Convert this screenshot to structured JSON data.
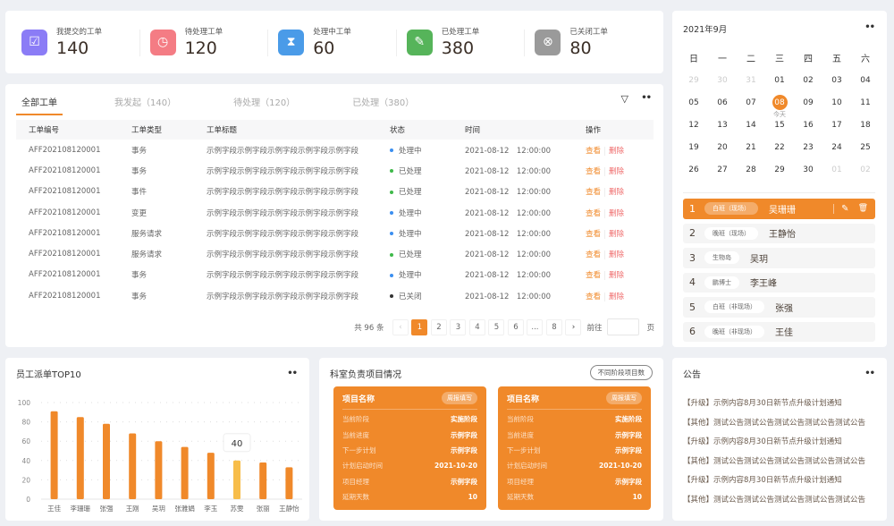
{
  "stats": [
    {
      "label": "我提交的工单",
      "value": "140",
      "color": "#8b7cf6",
      "icon": "inbox-check-icon",
      "glyph": "☑"
    },
    {
      "label": "待处理工单",
      "value": "120",
      "color": "#f47c84",
      "icon": "clock-icon",
      "glyph": "◷"
    },
    {
      "label": "处理中工单",
      "value": "60",
      "color": "#4a9be8",
      "icon": "hourglass-icon",
      "glyph": "⧗"
    },
    {
      "label": "已处理工单",
      "value": "380",
      "color": "#56b45a",
      "icon": "document-check-icon",
      "glyph": "✎"
    },
    {
      "label": "已关闭工单",
      "value": "80",
      "color": "#9a9a9a",
      "icon": "close-circle-icon",
      "glyph": "⊗"
    }
  ],
  "tabs": [
    "全部工单",
    "我发起（140）",
    "待处理（120）",
    "已处理（380）"
  ],
  "table": {
    "headers": [
      "工单编号",
      "工单类型",
      "工单标题",
      "状态",
      "时间",
      "操作"
    ],
    "view": "查看",
    "delete": "删除",
    "rows": [
      [
        "AFF202108120001",
        "事务",
        "示例字段示例字段示例字段示例字段示例字段",
        "处理中",
        "2021-08-12　12:00:00"
      ],
      [
        "AFF202108120001",
        "事务",
        "示例字段示例字段示例字段示例字段示例字段",
        "已处理",
        "2021-08-12　12:00:00"
      ],
      [
        "AFF202108120001",
        "事件",
        "示例字段示例字段示例字段示例字段示例字段",
        "已处理",
        "2021-08-12　12:00:00"
      ],
      [
        "AFF202108120001",
        "变更",
        "示例字段示例字段示例字段示例字段示例字段",
        "处理中",
        "2021-08-12　12:00:00"
      ],
      [
        "AFF202108120001",
        "服务请求",
        "示例字段示例字段示例字段示例字段示例字段",
        "处理中",
        "2021-08-12　12:00:00"
      ],
      [
        "AFF202108120001",
        "服务请求",
        "示例字段示例字段示例字段示例字段示例字段",
        "已处理",
        "2021-08-12　12:00:00"
      ],
      [
        "AFF202108120001",
        "事务",
        "示例字段示例字段示例字段示例字段示例字段",
        "处理中",
        "2021-08-12　12:00:00"
      ],
      [
        "AFF202108120001",
        "事务",
        "示例字段示例字段示例字段示例字段示例字段",
        "已关闭",
        "2021-08-12　12:00:00"
      ]
    ],
    "status_colors": {
      "处理中": "#3b8ff0",
      "已处理": "#3fb94a",
      "已关闭": "#333333"
    }
  },
  "pager": {
    "total": "共 96 条",
    "pages": [
      "1",
      "2",
      "3",
      "4",
      "5",
      "6",
      "...",
      "8"
    ],
    "current": "1",
    "goto": "前往",
    "page_unit": "页"
  },
  "calendar": {
    "title": "2021年9月",
    "weekdays": [
      "日",
      "一",
      "二",
      "三",
      "四",
      "五",
      "六"
    ],
    "days": [
      "29",
      "30",
      "31",
      "01",
      "02",
      "03",
      "04",
      "05",
      "06",
      "07",
      "08",
      "09",
      "10",
      "11",
      "12",
      "13",
      "14",
      "15",
      "16",
      "17",
      "18",
      "19",
      "20",
      "21",
      "22",
      "23",
      "24",
      "25",
      "26",
      "27",
      "28",
      "29",
      "30",
      "01",
      "02"
    ],
    "muted_indices": [
      0,
      1,
      2,
      33,
      34
    ],
    "today_index": 10,
    "today_label": "今天"
  },
  "shifts": [
    {
      "num": "1",
      "tag": "白班（现场）",
      "name": "吴珊珊",
      "active": true
    },
    {
      "num": "2",
      "tag": "晚班（现场）",
      "name": "王静怡"
    },
    {
      "num": "3",
      "tag": "生物岛",
      "name": "吴玥"
    },
    {
      "num": "4",
      "tag": "鹏博士",
      "name": "李王峰"
    },
    {
      "num": "5",
      "tag": "白班（非现场）",
      "name": "张强"
    },
    {
      "num": "6",
      "tag": "晚班（非现场）",
      "name": "王佳"
    }
  ],
  "chart_data": {
    "type": "bar",
    "title": "员工派单TOP10",
    "categories": [
      "王佳",
      "李珊珊",
      "张强",
      "王刚",
      "吴玥",
      "张雅娟",
      "李玉",
      "苏雯",
      "张丽",
      "王静怡"
    ],
    "values": [
      91,
      85,
      78,
      68,
      60,
      54,
      48,
      40,
      38,
      33
    ],
    "ylim": [
      0,
      100
    ],
    "yticks": [
      "0",
      "20",
      "40",
      "60",
      "80",
      "100"
    ],
    "highlight_index": 7,
    "tooltip": "40",
    "bar_color": "#f0892a",
    "highlight_color": "#f7bd4a",
    "grid": "dotted horizontal"
  },
  "projects": {
    "title": "科室负责项目情况",
    "badge": "不同阶段项目数",
    "cards": [
      {
        "name": "项目名称",
        "action": "周报填写",
        "rows": [
          [
            "当前阶段",
            "实施阶段"
          ],
          [
            "当前进度",
            "示例字段"
          ],
          [
            "下一步计划",
            "示例字段"
          ],
          [
            "计划启动时间",
            "2021-10-20"
          ],
          [
            "项目经理",
            "示例字段"
          ],
          [
            "延期天数",
            "10"
          ]
        ]
      },
      {
        "name": "项目名称",
        "action": "周报填写",
        "rows": [
          [
            "当前阶段",
            "实施阶段"
          ],
          [
            "当前进度",
            "示例字段"
          ],
          [
            "下一步计划",
            "示例字段"
          ],
          [
            "计划启动时间",
            "2021-10-20"
          ],
          [
            "项目经理",
            "示例字段"
          ],
          [
            "延期天数",
            "10"
          ]
        ]
      }
    ]
  },
  "notice": {
    "title": "公告",
    "items": [
      "【升级】示例内容8月30日新节点升级计划通知",
      "【其他】测试公告测试公告测试公告测试公告测试公告",
      "【升级】示例内容8月30日新节点升级计划通知",
      "【其他】测试公告测试公告测试公告测试公告测试公告",
      "【升级】示例内容8月30日新节点升级计划通知",
      "【其他】测试公告测试公告测试公告测试公告测试公告"
    ]
  }
}
